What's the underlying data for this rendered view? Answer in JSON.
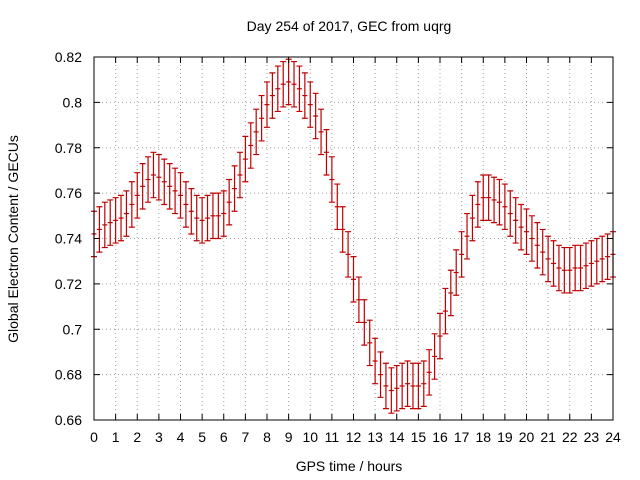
{
  "chart_data": {
    "type": "scatter",
    "title": "Day 254 of 2017, GEC from uqrg",
    "xlabel": "GPS time / hours",
    "ylabel": "Global Electron Content / GECUs",
    "xlim": [
      0,
      24
    ],
    "ylim": [
      0.66,
      0.82
    ],
    "x_ticks": [
      0,
      1,
      2,
      3,
      4,
      5,
      6,
      7,
      8,
      9,
      10,
      11,
      12,
      13,
      14,
      15,
      16,
      17,
      18,
      19,
      20,
      21,
      22,
      23,
      24
    ],
    "x_tick_labels": [
      "0",
      "1",
      "2",
      "3",
      "4",
      "5",
      "6",
      "7",
      "8",
      "9",
      "10",
      "11",
      "12",
      "13",
      "14",
      "15",
      "16",
      "17",
      "18",
      "19",
      "20",
      "21",
      "22",
      "23",
      "24"
    ],
    "y_ticks": [
      0.66,
      0.68,
      0.7,
      0.72,
      0.74,
      0.76,
      0.78,
      0.8,
      0.82
    ],
    "y_tick_labels": [
      "0.66",
      "0.68",
      "0.7",
      "0.72",
      "0.74",
      "0.76",
      "0.78",
      "0.8",
      "0.82"
    ],
    "grid": true,
    "series": [
      {
        "color": "#c00000",
        "error_bar": 0.01,
        "x": [
          0,
          0.25,
          0.5,
          0.75,
          1,
          1.25,
          1.5,
          1.75,
          2,
          2.25,
          2.5,
          2.75,
          3,
          3.25,
          3.5,
          3.75,
          4,
          4.25,
          4.5,
          4.75,
          5,
          5.25,
          5.5,
          5.75,
          6,
          6.25,
          6.5,
          6.75,
          7,
          7.25,
          7.5,
          7.75,
          8,
          8.25,
          8.5,
          8.75,
          9,
          9.25,
          9.5,
          9.75,
          10,
          10.25,
          10.5,
          10.75,
          11,
          11.25,
          11.5,
          11.75,
          12,
          12.25,
          12.5,
          12.75,
          13,
          13.25,
          13.5,
          13.75,
          14,
          14.25,
          14.5,
          14.75,
          15,
          15.25,
          15.5,
          15.75,
          16,
          16.25,
          16.5,
          16.75,
          17,
          17.25,
          17.5,
          17.75,
          18,
          18.25,
          18.5,
          18.75,
          19,
          19.25,
          19.5,
          19.75,
          20,
          20.25,
          20.5,
          20.75,
          21,
          21.25,
          21.5,
          21.75,
          22,
          22.25,
          22.5,
          22.75,
          23,
          23.25,
          23.5,
          23.75,
          24
        ],
        "y": [
          0.742,
          0.744,
          0.746,
          0.747,
          0.748,
          0.749,
          0.751,
          0.755,
          0.759,
          0.763,
          0.766,
          0.768,
          0.767,
          0.765,
          0.763,
          0.761,
          0.759,
          0.755,
          0.752,
          0.749,
          0.748,
          0.749,
          0.75,
          0.75,
          0.751,
          0.756,
          0.762,
          0.768,
          0.775,
          0.781,
          0.787,
          0.793,
          0.799,
          0.803,
          0.806,
          0.808,
          0.809,
          0.808,
          0.806,
          0.803,
          0.799,
          0.794,
          0.787,
          0.778,
          0.766,
          0.754,
          0.744,
          0.733,
          0.722,
          0.713,
          0.703,
          0.694,
          0.686,
          0.68,
          0.675,
          0.673,
          0.674,
          0.675,
          0.676,
          0.675,
          0.675,
          0.676,
          0.681,
          0.688,
          0.697,
          0.708,
          0.716,
          0.725,
          0.733,
          0.741,
          0.749,
          0.755,
          0.758,
          0.758,
          0.757,
          0.756,
          0.754,
          0.751,
          0.748,
          0.745,
          0.743,
          0.74,
          0.737,
          0.734,
          0.731,
          0.729,
          0.727,
          0.726,
          0.726,
          0.727,
          0.727,
          0.728,
          0.729,
          0.73,
          0.731,
          0.732,
          0.733
        ]
      }
    ]
  }
}
